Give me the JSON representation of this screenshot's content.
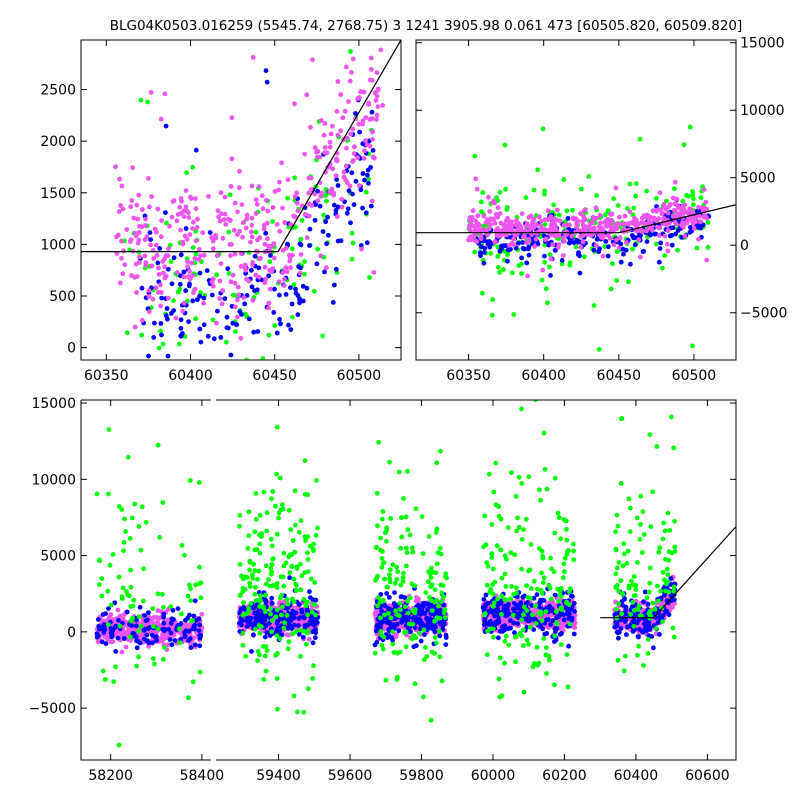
{
  "title": "BLG04K0503.016259 (5545.74, 2768.75)   3 1241 3905.98 0.061 473 [60505.820, 60509.820]",
  "colors": {
    "green": "#00ff00",
    "blue": "#0000ff",
    "pink": "#ee55ee",
    "fit_line": "#000000"
  },
  "chart_data": [
    {
      "type": "scatter",
      "panel": "top-left",
      "xlim": [
        60335,
        60525
      ],
      "ylim": [
        -120,
        2980
      ],
      "xticks": [
        "60350",
        "60400",
        "60450",
        "60500"
      ],
      "yticks": [
        "0",
        "500",
        "1000",
        "1500",
        "2000",
        "2500"
      ],
      "ytick_side": "left",
      "grid": false,
      "fit_line": {
        "x": [
          60335,
          60452,
          60525
        ],
        "y": [
          930,
          930,
          2980
        ]
      },
      "series": [
        {
          "color": "green",
          "n": 140,
          "x_range": [
            60360,
            60510
          ],
          "y_center": 600,
          "y_spread": 900
        },
        {
          "color": "blue",
          "n": 220,
          "x_range": [
            60370,
            60510
          ],
          "y_center": 500,
          "y_spread": 700
        },
        {
          "color": "pink",
          "n": 420,
          "x_range": [
            60355,
            60515
          ],
          "y_center": 1000,
          "y_spread": 700
        }
      ]
    },
    {
      "type": "scatter",
      "panel": "top-right",
      "xlim": [
        60315,
        60528
      ],
      "ylim": [
        -8500,
        15200
      ],
      "xticks": [
        "60350",
        "60400",
        "60450",
        "60500"
      ],
      "yticks": [
        "-5000",
        "0",
        "5000",
        "10000",
        "15000"
      ],
      "ytick_side": "right",
      "grid": false,
      "fit_line": {
        "x": [
          60315,
          60450,
          60528
        ],
        "y": [
          930,
          930,
          3000
        ]
      },
      "series": [
        {
          "color": "green",
          "n": 220,
          "x_range": [
            60350,
            60510
          ],
          "y_center": 900,
          "y_spread": 3500
        },
        {
          "color": "blue",
          "n": 260,
          "x_range": [
            60355,
            60510
          ],
          "y_center": 400,
          "y_spread": 1200
        },
        {
          "color": "pink",
          "n": 450,
          "x_range": [
            60350,
            60510
          ],
          "y_center": 1200,
          "y_spread": 1200
        }
      ]
    },
    {
      "type": "scatter",
      "panel": "bottom",
      "xlim": [
        58135,
        60680
      ],
      "ylim": [
        -8400,
        15200
      ],
      "xticks": [
        "58200",
        "58400",
        "59400",
        "59600",
        "59800",
        "60000",
        "60200",
        "60400",
        "60600"
      ],
      "yticks": [
        "-5000",
        "0",
        "5000",
        "10000",
        "15000"
      ],
      "ytick_side": "left",
      "grid": false,
      "axis_break_x": 58540,
      "fit_line": {
        "x": [
          60300,
          60450,
          60680
        ],
        "y": [
          930,
          930,
          6900
        ]
      },
      "seasons": [
        {
          "x_range": [
            58170,
            58400
          ],
          "n_green": 90,
          "n_blue": 120,
          "n_pink": 380,
          "y_center": 200
        },
        {
          "x_range": [
            59290,
            59510
          ],
          "n_green": 200,
          "n_blue": 200,
          "n_pink": 520,
          "y_center": 900
        },
        {
          "x_range": [
            59670,
            59870
          ],
          "n_green": 160,
          "n_blue": 220,
          "n_pink": 480,
          "y_center": 900
        },
        {
          "x_range": [
            59970,
            60230
          ],
          "n_green": 180,
          "n_blue": 220,
          "n_pink": 480,
          "y_center": 1100
        },
        {
          "x_range": [
            60340,
            60510
          ],
          "n_green": 110,
          "n_blue": 150,
          "n_pink": 300,
          "y_center": 900
        }
      ]
    }
  ]
}
